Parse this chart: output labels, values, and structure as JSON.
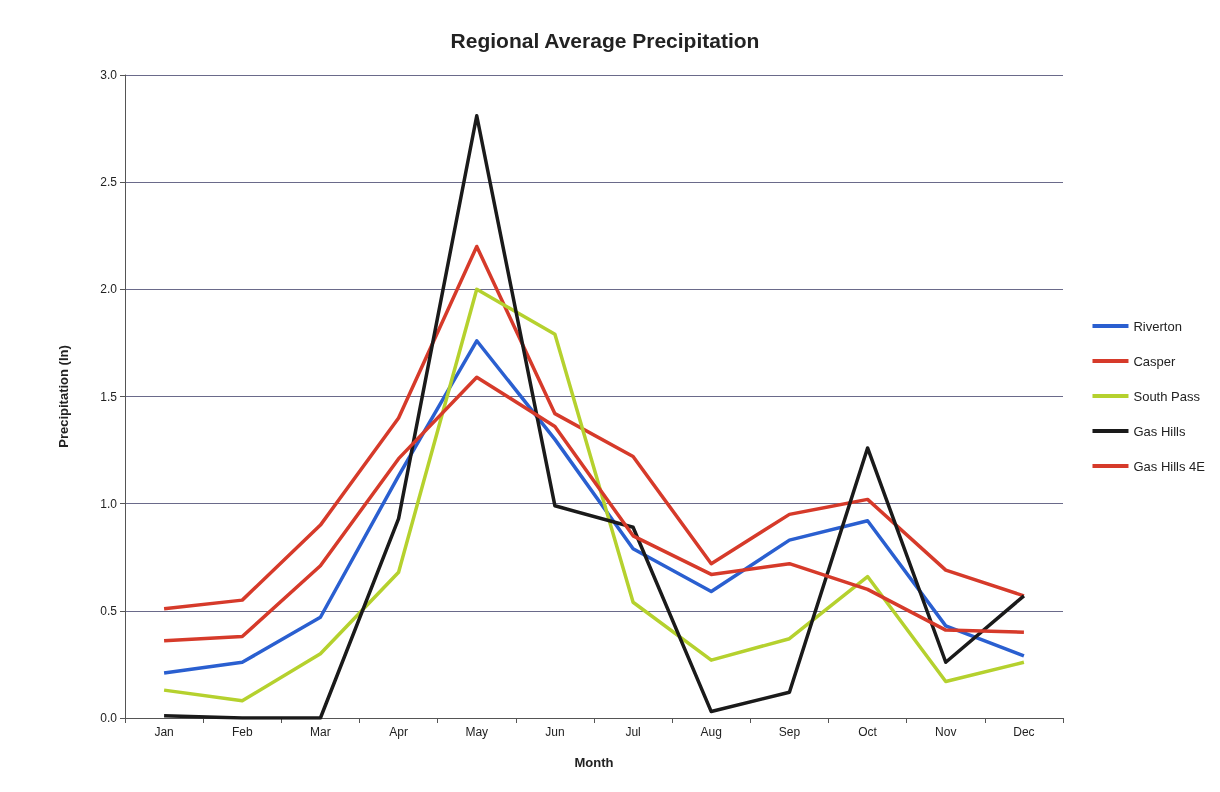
{
  "chart_data": {
    "type": "line",
    "title": "Regional Average Precipitation",
    "xlabel": "Month",
    "ylabel": "Precipitation (In)",
    "categories": [
      "Jan",
      "Feb",
      "Mar",
      "Apr",
      "May",
      "Jun",
      "Jul",
      "Aug",
      "Sep",
      "Oct",
      "Nov",
      "Dec"
    ],
    "series": [
      {
        "name": "Riverton",
        "color": "#2a5fd0",
        "values": [
          0.21,
          0.26,
          0.47,
          1.13,
          1.76,
          1.3,
          0.79,
          0.59,
          0.83,
          0.92,
          0.43,
          0.29
        ]
      },
      {
        "name": "Casper",
        "color": "#d63a2a",
        "values": [
          0.51,
          0.55,
          0.9,
          1.4,
          2.2,
          1.42,
          1.22,
          0.72,
          0.95,
          1.02,
          0.69,
          0.57
        ]
      },
      {
        "name": "South Pass",
        "color": "#b5d12e",
        "values": [
          0.13,
          0.08,
          0.3,
          0.68,
          2.0,
          1.79,
          0.54,
          0.27,
          0.37,
          0.66,
          0.17,
          0.26
        ]
      },
      {
        "name": "Gas Hills",
        "color": "#1a1a1a",
        "values": [
          0.01,
          0.0,
          0.0,
          0.93,
          2.81,
          0.99,
          0.89,
          0.03,
          0.12,
          1.26,
          0.26,
          0.57
        ]
      },
      {
        "name": "Gas Hills 4E",
        "color": "#d63a2a",
        "values": [
          0.36,
          0.38,
          0.71,
          1.21,
          1.59,
          1.36,
          0.85,
          0.67,
          0.72,
          0.6,
          0.41,
          0.4
        ]
      }
    ],
    "ylim": [
      0,
      3
    ],
    "yticks": [
      {
        "value": 0,
        "label": "0.0"
      },
      {
        "value": 0.5,
        "label": "0.5"
      },
      {
        "value": 1,
        "label": "1.0"
      },
      {
        "value": 1.5,
        "label": "1.5"
      },
      {
        "value": 2,
        "label": "2.0"
      },
      {
        "value": 2.5,
        "label": "2.5"
      },
      {
        "value": 3,
        "label": "3.0"
      }
    ],
    "grid": "y",
    "legend": "right",
    "marker": "none",
    "line_style": "solid"
  }
}
